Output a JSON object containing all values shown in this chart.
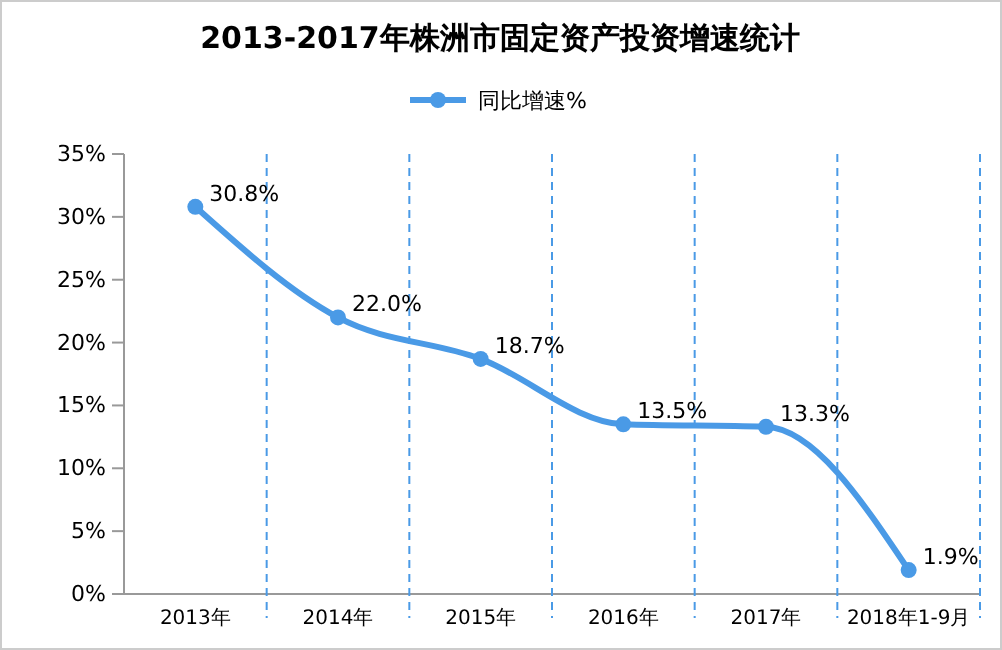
{
  "chart_data": {
    "type": "line",
    "title": "2013-2017年株洲市固定资产投资增速统计",
    "categories": [
      "2013年",
      "2014年",
      "2015年",
      "2016年",
      "2017年",
      "2018年1-9月"
    ],
    "series": [
      {
        "name": "同比增速%",
        "color": "#4a9ae6",
        "values": [
          30.8,
          22.0,
          18.7,
          13.5,
          13.3,
          1.9
        ],
        "value_labels": [
          "30.8%",
          "22.0%",
          "18.7%",
          "13.5%",
          "13.3%",
          "1.9%"
        ]
      }
    ],
    "ylim": [
      0,
      35
    ],
    "yticks": [
      {
        "value": 0,
        "label": "0%"
      },
      {
        "value": 5,
        "label": "5%"
      },
      {
        "value": 10,
        "label": "10%"
      },
      {
        "value": 15,
        "label": "15%"
      },
      {
        "value": 20,
        "label": "20%"
      },
      {
        "value": 25,
        "label": "25%"
      },
      {
        "value": 30,
        "label": "30%"
      },
      {
        "value": 35,
        "label": "35%"
      }
    ],
    "grid": "x",
    "legend": "top",
    "marker": "circle",
    "line_style": "solid"
  }
}
